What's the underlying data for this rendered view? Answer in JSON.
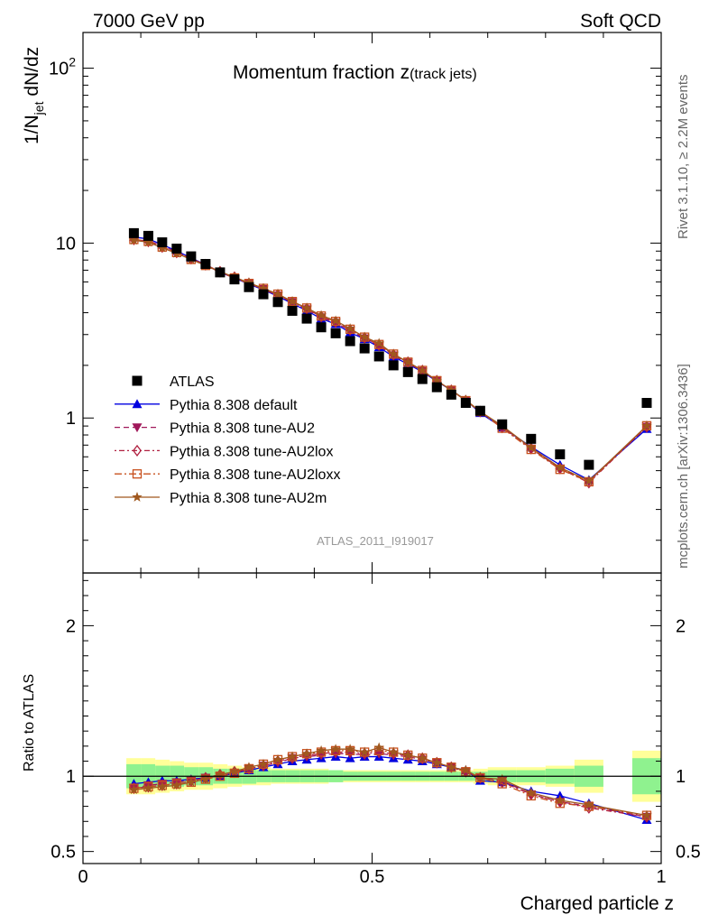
{
  "header": {
    "left": "7000 GeV pp",
    "right": "Soft QCD"
  },
  "side": {
    "rivet": "Rivet 3.1.10, ≥ 2.2M events",
    "mcplots": "mcplots.cern.ch [arXiv:1306.3436]"
  },
  "colors": {
    "atlas": "#000000",
    "default": "#0000e0",
    "au2": "#a0185a",
    "au2lox": "#b02040",
    "au2loxx": "#c8501e",
    "au2m": "#a0581e",
    "band_inner": "#8ff28f",
    "band_outer": "#ffff99",
    "label_grey": "#999999"
  },
  "chart_data": {
    "type": "scatter",
    "title_main": "Momentum fraction z",
    "title_sub": "(track jets)",
    "analysis_label": "ATLAS_2011_I919017",
    "xlabel": "Charged particle z",
    "ylabel": "1/N",
    "ylabel_sub": "jet",
    "ylabel_rest": " dN/dz",
    "ratio_ylabel": "Ratio to ATLAS",
    "xlim": [
      0,
      1
    ],
    "ylim": [
      0.13,
      160
    ],
    "ratio_ylim": [
      0.42,
      2.35
    ],
    "xticks": [
      {
        "v": 0,
        "label": "0"
      },
      {
        "v": 0.5,
        "label": "0.5"
      },
      {
        "v": 1,
        "label": "1"
      }
    ],
    "yticks_main": [
      {
        "v": 1,
        "label": "1"
      },
      {
        "v": 10,
        "label": "10"
      },
      {
        "v": 100,
        "label": "10",
        "sup": "2"
      }
    ],
    "yticks_ratio": [
      {
        "v": 0.5,
        "label": "0.5"
      },
      {
        "v": 1,
        "label": "1"
      },
      {
        "v": 2,
        "label": "2"
      }
    ],
    "x": [
      0.088,
      0.113,
      0.137,
      0.162,
      0.187,
      0.212,
      0.237,
      0.262,
      0.287,
      0.312,
      0.337,
      0.362,
      0.387,
      0.412,
      0.437,
      0.462,
      0.487,
      0.512,
      0.537,
      0.562,
      0.587,
      0.612,
      0.637,
      0.662,
      0.687,
      0.725,
      0.775,
      0.825,
      0.875,
      0.975
    ],
    "x_low": [
      0.075,
      0.1,
      0.125,
      0.15,
      0.175,
      0.2,
      0.225,
      0.25,
      0.275,
      0.3,
      0.325,
      0.35,
      0.375,
      0.4,
      0.425,
      0.45,
      0.475,
      0.5,
      0.525,
      0.55,
      0.575,
      0.6,
      0.625,
      0.65,
      0.675,
      0.7,
      0.75,
      0.8,
      0.85,
      0.95
    ],
    "x_high": [
      0.1,
      0.125,
      0.15,
      0.175,
      0.2,
      0.225,
      0.25,
      0.275,
      0.3,
      0.325,
      0.35,
      0.375,
      0.4,
      0.425,
      0.45,
      0.475,
      0.5,
      0.525,
      0.55,
      0.575,
      0.6,
      0.625,
      0.65,
      0.675,
      0.7,
      0.75,
      0.8,
      0.85,
      0.9,
      1.0
    ],
    "data_name": "ATLAS",
    "data_values": [
      11.4,
      11.0,
      10.1,
      9.3,
      8.4,
      7.6,
      6.8,
      6.2,
      5.6,
      5.1,
      4.6,
      4.1,
      3.7,
      3.3,
      3.05,
      2.75,
      2.5,
      2.25,
      2.0,
      1.83,
      1.67,
      1.5,
      1.36,
      1.22,
      1.1,
      0.92,
      0.76,
      0.62,
      0.54,
      1.22
    ],
    "band_inner": [
      0.08,
      0.08,
      0.07,
      0.07,
      0.06,
      0.06,
      0.05,
      0.05,
      0.05,
      0.04,
      0.04,
      0.04,
      0.04,
      0.04,
      0.04,
      0.03,
      0.03,
      0.03,
      0.03,
      0.03,
      0.03,
      0.03,
      0.03,
      0.03,
      0.03,
      0.04,
      0.04,
      0.05,
      0.07,
      0.12
    ],
    "band_outer": [
      0.12,
      0.12,
      0.11,
      0.1,
      0.09,
      0.09,
      0.08,
      0.07,
      0.06,
      0.06,
      0.05,
      0.05,
      0.05,
      0.05,
      0.04,
      0.04,
      0.04,
      0.04,
      0.04,
      0.04,
      0.04,
      0.04,
      0.04,
      0.04,
      0.05,
      0.06,
      0.06,
      0.07,
      0.11,
      0.17
    ],
    "series": [
      {
        "name": "Pythia 8.308 default",
        "key": "default",
        "marker": "triangle-up",
        "dash": "",
        "ratio": [
          0.95,
          0.96,
          0.97,
          0.97,
          0.98,
          0.99,
          1.0,
          1.02,
          1.04,
          1.06,
          1.08,
          1.1,
          1.11,
          1.12,
          1.13,
          1.12,
          1.13,
          1.13,
          1.12,
          1.11,
          1.1,
          1.08,
          1.06,
          1.04,
          0.97,
          0.96,
          0.9,
          0.87,
          0.82,
          0.71
        ]
      },
      {
        "name": "Pythia 8.308 tune-AU2",
        "key": "au2",
        "marker": "triangle-down",
        "dash": "6,4",
        "ratio": [
          0.92,
          0.94,
          0.95,
          0.96,
          0.97,
          0.99,
          1.0,
          1.02,
          1.05,
          1.07,
          1.09,
          1.12,
          1.13,
          1.14,
          1.15,
          1.15,
          1.14,
          1.15,
          1.14,
          1.13,
          1.11,
          1.09,
          1.06,
          1.03,
          0.99,
          0.97,
          0.88,
          0.83,
          0.8,
          0.73
        ]
      },
      {
        "name": "Pythia 8.308 tune-AU2lox",
        "key": "au2lox",
        "marker": "diamond",
        "dash": "2,3,6,3",
        "ratio": [
          0.92,
          0.93,
          0.94,
          0.95,
          0.97,
          0.99,
          1.01,
          1.03,
          1.05,
          1.07,
          1.1,
          1.12,
          1.14,
          1.15,
          1.16,
          1.16,
          1.15,
          1.16,
          1.15,
          1.14,
          1.12,
          1.09,
          1.06,
          1.03,
          0.99,
          0.96,
          0.88,
          0.83,
          0.79,
          0.73
        ]
      },
      {
        "name": "Pythia 8.308 tune-AU2loxx",
        "key": "au2loxx",
        "marker": "square-open",
        "dash": "8,3,2,3",
        "ratio": [
          0.92,
          0.93,
          0.94,
          0.95,
          0.96,
          0.98,
          1.0,
          1.02,
          1.05,
          1.08,
          1.11,
          1.13,
          1.15,
          1.16,
          1.17,
          1.17,
          1.16,
          1.17,
          1.16,
          1.14,
          1.12,
          1.09,
          1.06,
          1.03,
          0.99,
          0.95,
          0.87,
          0.82,
          0.8,
          0.74
        ]
      },
      {
        "name": "Pythia 8.308 tune-AU2m",
        "key": "au2m",
        "marker": "star",
        "dash": "",
        "ratio": [
          0.91,
          0.92,
          0.93,
          0.94,
          0.96,
          0.98,
          1.01,
          1.03,
          1.06,
          1.08,
          1.11,
          1.13,
          1.15,
          1.17,
          1.18,
          1.18,
          1.16,
          1.19,
          1.16,
          1.14,
          1.12,
          1.09,
          1.06,
          1.04,
          0.99,
          0.98,
          0.89,
          0.84,
          0.81,
          0.74
        ]
      }
    ]
  }
}
